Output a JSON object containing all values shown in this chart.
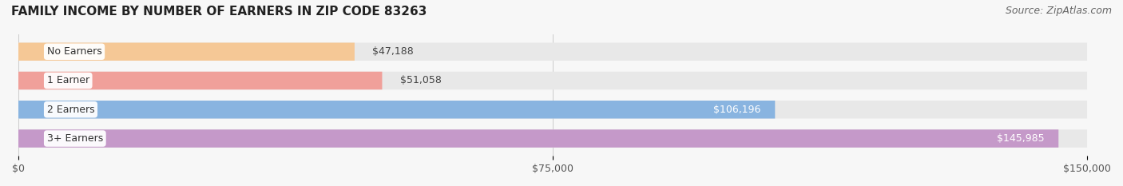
{
  "title": "FAMILY INCOME BY NUMBER OF EARNERS IN ZIP CODE 83263",
  "source": "Source: ZipAtlas.com",
  "categories": [
    "No Earners",
    "1 Earner",
    "2 Earners",
    "3+ Earners"
  ],
  "values": [
    47188,
    51058,
    106196,
    145985
  ],
  "labels": [
    "$47,188",
    "$51,058",
    "$106,196",
    "$145,985"
  ],
  "colors": [
    "#f5c896",
    "#f0a09a",
    "#89b4e0",
    "#c599c9"
  ],
  "bar_bg_color": "#f0f0f0",
  "background_color": "#f7f7f7",
  "xlim": [
    0,
    150000
  ],
  "xticks": [
    0,
    75000,
    150000
  ],
  "xtick_labels": [
    "$0",
    "$75,000",
    "$150,000"
  ],
  "title_fontsize": 11,
  "source_fontsize": 9,
  "label_fontsize": 9,
  "category_fontsize": 9,
  "bar_height": 0.62,
  "label_inside_threshold": 100000
}
